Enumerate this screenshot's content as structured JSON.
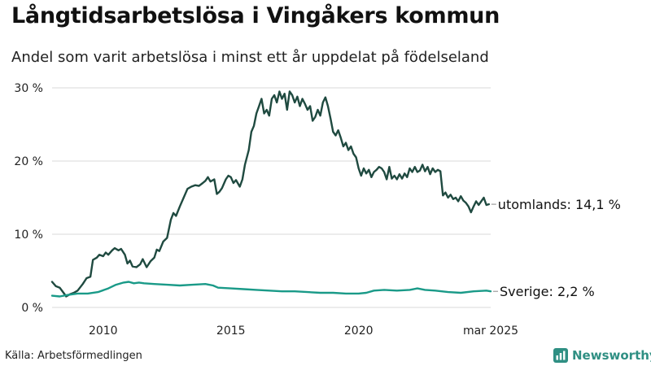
{
  "header": {
    "title": "Långtidsarbetslösa i Vingåkers kommun",
    "subtitle": "Andel som varit arbetslösa i minst ett år uppdelat på födelseland"
  },
  "footer": {
    "source": "Källa: Arbetsförmedlingen",
    "brand": "Newsworthy"
  },
  "colors": {
    "utomlands": "#1f4a40",
    "sverige": "#1a9a88",
    "grid": "#d9d9d9",
    "brand": "#2f8f83"
  },
  "chart_data": {
    "type": "line",
    "x_unit": "year",
    "xlim": [
      2008.0,
      2025.17
    ],
    "ylim": [
      0,
      30
    ],
    "y_ticks": [
      {
        "value": 0,
        "label": "0 %"
      },
      {
        "value": 10,
        "label": "10 %"
      },
      {
        "value": 20,
        "label": "20 %"
      },
      {
        "value": 30,
        "label": "30 %"
      }
    ],
    "x_ticks": [
      {
        "value": 2010,
        "label": "2010"
      },
      {
        "value": 2015,
        "label": "2015"
      },
      {
        "value": 2020,
        "label": "2020"
      },
      {
        "value": 2025.17,
        "label": "mar 2025"
      }
    ],
    "grid": true,
    "series": [
      {
        "name": "utomlands",
        "end_label": "utomlands: 14,1 %",
        "points": [
          [
            2008.0,
            3.5
          ],
          [
            2008.15,
            2.9
          ],
          [
            2008.3,
            2.7
          ],
          [
            2008.45,
            2.0
          ],
          [
            2008.55,
            1.5
          ],
          [
            2008.7,
            1.8
          ],
          [
            2008.85,
            2.0
          ],
          [
            2009.0,
            2.3
          ],
          [
            2009.2,
            3.2
          ],
          [
            2009.35,
            4.0
          ],
          [
            2009.5,
            4.2
          ],
          [
            2009.6,
            6.5
          ],
          [
            2009.75,
            6.8
          ],
          [
            2009.85,
            7.2
          ],
          [
            2010.0,
            7.0
          ],
          [
            2010.1,
            7.5
          ],
          [
            2010.2,
            7.2
          ],
          [
            2010.35,
            7.8
          ],
          [
            2010.45,
            8.1
          ],
          [
            2010.6,
            7.8
          ],
          [
            2010.7,
            8.0
          ],
          [
            2010.85,
            7.2
          ],
          [
            2010.95,
            6.0
          ],
          [
            2011.05,
            6.4
          ],
          [
            2011.15,
            5.6
          ],
          [
            2011.3,
            5.5
          ],
          [
            2011.45,
            5.9
          ],
          [
            2011.55,
            6.6
          ],
          [
            2011.7,
            5.5
          ],
          [
            2011.85,
            6.3
          ],
          [
            2012.0,
            6.8
          ],
          [
            2012.1,
            7.9
          ],
          [
            2012.2,
            7.7
          ],
          [
            2012.35,
            9.0
          ],
          [
            2012.5,
            9.5
          ],
          [
            2012.65,
            12.0
          ],
          [
            2012.75,
            12.9
          ],
          [
            2012.85,
            12.5
          ],
          [
            2013.0,
            13.8
          ],
          [
            2013.15,
            15.0
          ],
          [
            2013.3,
            16.2
          ],
          [
            2013.45,
            16.5
          ],
          [
            2013.6,
            16.7
          ],
          [
            2013.75,
            16.6
          ],
          [
            2013.9,
            17.0
          ],
          [
            2014.0,
            17.3
          ],
          [
            2014.1,
            17.8
          ],
          [
            2014.2,
            17.2
          ],
          [
            2014.35,
            17.5
          ],
          [
            2014.45,
            15.5
          ],
          [
            2014.55,
            15.8
          ],
          [
            2014.65,
            16.3
          ],
          [
            2014.8,
            17.5
          ],
          [
            2014.9,
            18.0
          ],
          [
            2015.0,
            17.8
          ],
          [
            2015.1,
            17.0
          ],
          [
            2015.2,
            17.4
          ],
          [
            2015.35,
            16.5
          ],
          [
            2015.45,
            17.5
          ],
          [
            2015.55,
            19.5
          ],
          [
            2015.7,
            21.5
          ],
          [
            2015.8,
            24.0
          ],
          [
            2015.9,
            24.8
          ],
          [
            2016.0,
            26.5
          ],
          [
            2016.1,
            27.5
          ],
          [
            2016.2,
            28.5
          ],
          [
            2016.3,
            26.5
          ],
          [
            2016.4,
            27.0
          ],
          [
            2016.5,
            26.2
          ],
          [
            2016.6,
            28.5
          ],
          [
            2016.7,
            29.0
          ],
          [
            2016.8,
            28.0
          ],
          [
            2016.9,
            29.5
          ],
          [
            2017.0,
            28.5
          ],
          [
            2017.1,
            29.2
          ],
          [
            2017.2,
            27.0
          ],
          [
            2017.3,
            29.5
          ],
          [
            2017.4,
            29.0
          ],
          [
            2017.5,
            28.0
          ],
          [
            2017.6,
            28.8
          ],
          [
            2017.7,
            27.5
          ],
          [
            2017.8,
            28.5
          ],
          [
            2017.9,
            27.8
          ],
          [
            2018.0,
            27.0
          ],
          [
            2018.1,
            27.5
          ],
          [
            2018.2,
            25.5
          ],
          [
            2018.3,
            26.0
          ],
          [
            2018.4,
            27.0
          ],
          [
            2018.5,
            26.2
          ],
          [
            2018.6,
            28.0
          ],
          [
            2018.7,
            28.7
          ],
          [
            2018.8,
            27.5
          ],
          [
            2018.9,
            25.8
          ],
          [
            2019.0,
            24.0
          ],
          [
            2019.1,
            23.5
          ],
          [
            2019.2,
            24.2
          ],
          [
            2019.3,
            23.2
          ],
          [
            2019.4,
            22.0
          ],
          [
            2019.5,
            22.5
          ],
          [
            2019.6,
            21.5
          ],
          [
            2019.7,
            22.0
          ],
          [
            2019.8,
            21.0
          ],
          [
            2019.9,
            20.5
          ],
          [
            2020.0,
            19.0
          ],
          [
            2020.1,
            18.0
          ],
          [
            2020.2,
            19.0
          ],
          [
            2020.3,
            18.3
          ],
          [
            2020.4,
            18.8
          ],
          [
            2020.5,
            17.8
          ],
          [
            2020.6,
            18.5
          ],
          [
            2020.7,
            18.8
          ],
          [
            2020.8,
            19.2
          ],
          [
            2020.9,
            19.0
          ],
          [
            2021.0,
            18.5
          ],
          [
            2021.1,
            17.5
          ],
          [
            2021.2,
            19.2
          ],
          [
            2021.3,
            17.6
          ],
          [
            2021.4,
            18.0
          ],
          [
            2021.5,
            17.5
          ],
          [
            2021.6,
            18.2
          ],
          [
            2021.7,
            17.6
          ],
          [
            2021.8,
            18.3
          ],
          [
            2021.9,
            17.8
          ],
          [
            2022.0,
            19.0
          ],
          [
            2022.1,
            18.5
          ],
          [
            2022.2,
            19.2
          ],
          [
            2022.3,
            18.5
          ],
          [
            2022.4,
            18.7
          ],
          [
            2022.5,
            19.5
          ],
          [
            2022.6,
            18.6
          ],
          [
            2022.7,
            19.2
          ],
          [
            2022.8,
            18.2
          ],
          [
            2022.9,
            19.0
          ],
          [
            2023.0,
            18.5
          ],
          [
            2023.1,
            18.8
          ],
          [
            2023.2,
            18.6
          ],
          [
            2023.3,
            15.3
          ],
          [
            2023.4,
            15.7
          ],
          [
            2023.5,
            15.0
          ],
          [
            2023.6,
            15.4
          ],
          [
            2023.7,
            14.8
          ],
          [
            2023.8,
            15.0
          ],
          [
            2023.9,
            14.5
          ],
          [
            2024.0,
            15.2
          ],
          [
            2024.1,
            14.6
          ],
          [
            2024.2,
            14.3
          ],
          [
            2024.3,
            13.8
          ],
          [
            2024.4,
            13.0
          ],
          [
            2024.5,
            13.8
          ],
          [
            2024.6,
            14.5
          ],
          [
            2024.7,
            14.0
          ],
          [
            2024.8,
            14.5
          ],
          [
            2024.9,
            15.0
          ],
          [
            2025.0,
            14.0
          ],
          [
            2025.1,
            14.1
          ]
        ]
      },
      {
        "name": "Sverige",
        "end_label": "Sverige:  2,2 %",
        "points": [
          [
            2008.0,
            1.6
          ],
          [
            2008.3,
            1.5
          ],
          [
            2008.6,
            1.7
          ],
          [
            2009.0,
            1.9
          ],
          [
            2009.4,
            1.9
          ],
          [
            2009.8,
            2.1
          ],
          [
            2010.2,
            2.6
          ],
          [
            2010.5,
            3.1
          ],
          [
            2010.8,
            3.4
          ],
          [
            2011.0,
            3.5
          ],
          [
            2011.2,
            3.3
          ],
          [
            2011.4,
            3.4
          ],
          [
            2011.6,
            3.3
          ],
          [
            2012.0,
            3.2
          ],
          [
            2012.5,
            3.1
          ],
          [
            2013.0,
            3.0
          ],
          [
            2013.5,
            3.1
          ],
          [
            2014.0,
            3.2
          ],
          [
            2014.3,
            3.0
          ],
          [
            2014.5,
            2.7
          ],
          [
            2015.0,
            2.6
          ],
          [
            2015.5,
            2.5
          ],
          [
            2016.0,
            2.4
          ],
          [
            2016.5,
            2.3
          ],
          [
            2017.0,
            2.2
          ],
          [
            2017.5,
            2.2
          ],
          [
            2018.0,
            2.1
          ],
          [
            2018.5,
            2.0
          ],
          [
            2019.0,
            2.0
          ],
          [
            2019.5,
            1.9
          ],
          [
            2020.0,
            1.9
          ],
          [
            2020.3,
            2.0
          ],
          [
            2020.6,
            2.3
          ],
          [
            2021.0,
            2.4
          ],
          [
            2021.5,
            2.3
          ],
          [
            2022.0,
            2.4
          ],
          [
            2022.3,
            2.6
          ],
          [
            2022.6,
            2.4
          ],
          [
            2023.0,
            2.3
          ],
          [
            2023.5,
            2.1
          ],
          [
            2024.0,
            2.0
          ],
          [
            2024.5,
            2.2
          ],
          [
            2025.0,
            2.3
          ],
          [
            2025.17,
            2.2
          ]
        ]
      }
    ]
  }
}
